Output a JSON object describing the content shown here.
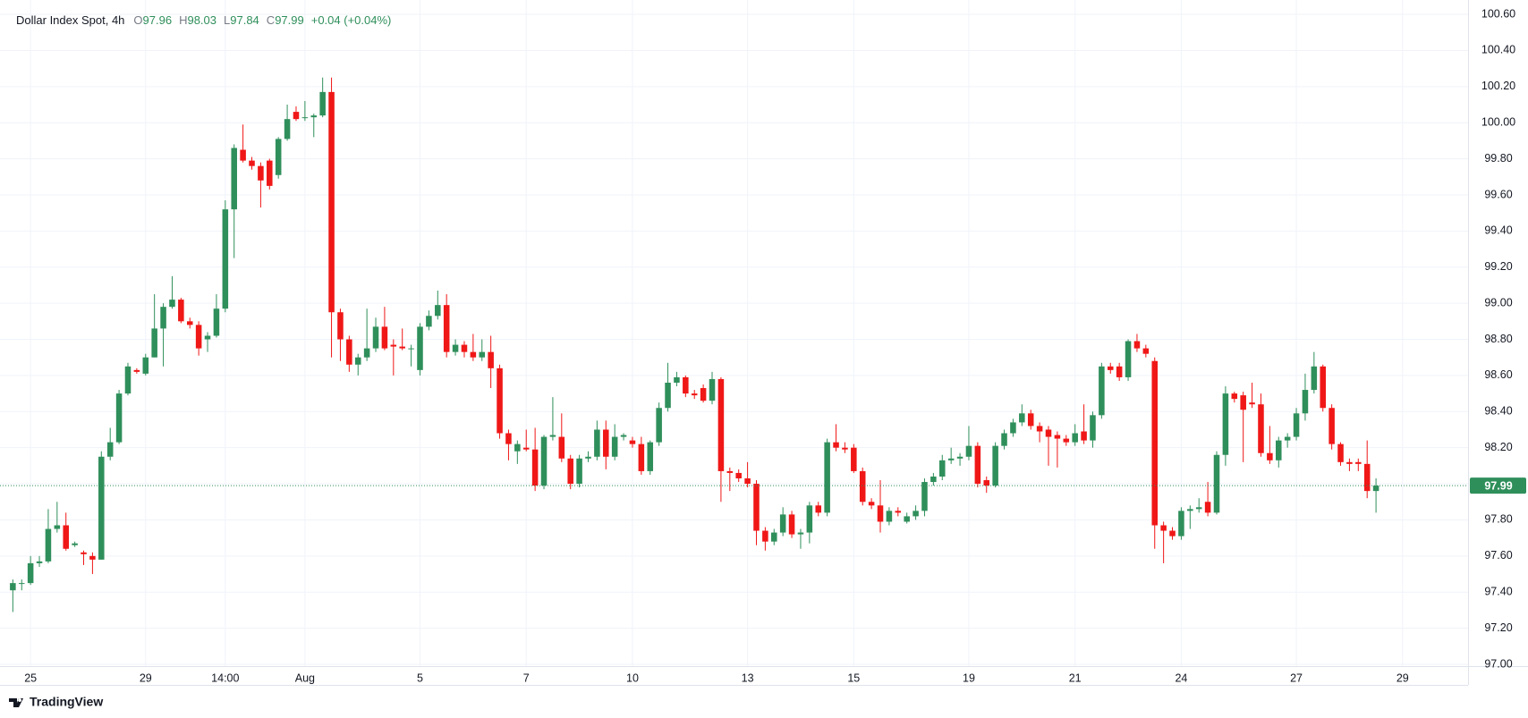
{
  "chart_data": {
    "type": "candlestick",
    "title": "Dollar Index Spot, 4h",
    "readout": [
      {
        "label": "O",
        "value": 97.96
      },
      {
        "label": "H",
        "value": 98.03
      },
      {
        "label": "L",
        "value": 97.84
      },
      {
        "label": "C",
        "value": 97.99
      }
    ],
    "change": "+0.04 (+0.04%)",
    "branding": "TradingView",
    "up_color": "#2f8f5b",
    "down_color": "#f01717",
    "last_price": 97.99,
    "grid": true,
    "open": [
      97.41,
      97.45,
      97.45,
      97.56,
      97.57,
      97.75,
      97.77,
      97.66,
      97.62,
      97.6,
      97.58,
      98.15,
      98.23,
      98.5,
      98.63,
      98.61,
      98.7,
      98.86,
      98.98,
      99.02,
      98.9,
      98.88,
      98.8,
      98.82,
      98.97,
      99.52,
      99.85,
      99.79,
      99.76,
      99.79,
      99.71,
      99.91,
      100.06,
      100.03,
      100.03,
      100.04,
      100.17,
      98.95,
      98.8,
      98.66,
      98.7,
      98.75,
      98.87,
      98.77,
      98.76,
      98.75,
      98.63,
      98.87,
      98.93,
      98.99,
      98.73,
      98.77,
      98.73,
      98.7,
      98.73,
      98.64,
      98.28,
      98.18,
      98.2,
      98.19,
      97.99,
      98.26,
      98.26,
      98.14,
      98.0,
      98.14,
      98.15,
      98.3,
      98.15,
      98.26,
      98.24,
      98.22,
      98.07,
      98.23,
      98.42,
      98.56,
      98.59,
      98.5,
      98.53,
      98.46,
      98.58,
      98.07,
      98.06,
      98.03,
      98.0,
      97.74,
      97.68,
      97.73,
      97.83,
      97.72,
      97.73,
      97.88,
      97.84,
      98.23,
      98.2,
      98.2,
      98.07,
      97.9,
      97.88,
      97.79,
      97.85,
      97.79,
      97.82,
      97.85,
      98.01,
      98.04,
      98.13,
      98.14,
      98.15,
      98.21,
      98.02,
      97.99,
      98.21,
      98.28,
      98.34,
      98.39,
      98.32,
      98.3,
      98.27,
      98.25,
      98.23,
      98.29,
      98.24,
      98.38,
      98.65,
      98.65,
      98.59,
      98.79,
      98.75,
      98.68,
      97.77,
      97.74,
      97.71,
      97.85,
      97.86,
      97.9,
      97.84,
      98.16,
      98.5,
      98.49,
      98.45,
      98.44,
      98.17,
      98.13,
      98.24,
      98.26,
      98.39,
      98.52,
      98.65,
      98.42,
      98.22,
      98.12,
      98.12,
      98.11,
      97.96
    ],
    "high": [
      97.47,
      97.47,
      97.6,
      97.6,
      97.86,
      97.9,
      97.84,
      97.68,
      97.63,
      97.62,
      98.18,
      98.31,
      98.52,
      98.67,
      98.64,
      98.72,
      99.05,
      99.0,
      99.15,
      99.03,
      98.92,
      98.9,
      98.84,
      99.05,
      99.57,
      99.88,
      99.99,
      99.81,
      99.78,
      99.8,
      99.92,
      100.1,
      100.09,
      100.12,
      100.05,
      100.25,
      100.25,
      98.97,
      98.82,
      98.72,
      98.97,
      98.92,
      98.98,
      98.8,
      98.86,
      98.77,
      98.89,
      98.96,
      99.07,
      99.05,
      98.8,
      98.79,
      98.83,
      98.8,
      98.82,
      98.66,
      98.3,
      98.24,
      98.3,
      98.31,
      98.27,
      98.48,
      98.39,
      98.16,
      98.16,
      98.18,
      98.35,
      98.35,
      98.33,
      98.28,
      98.26,
      98.26,
      98.24,
      98.45,
      98.67,
      98.62,
      98.6,
      98.52,
      98.55,
      98.62,
      98.59,
      98.09,
      98.08,
      98.12,
      98.02,
      97.76,
      97.75,
      97.87,
      97.85,
      97.75,
      97.9,
      97.9,
      98.25,
      98.33,
      98.23,
      98.22,
      98.09,
      97.92,
      98.02,
      97.87,
      97.87,
      97.84,
      97.88,
      98.03,
      98.06,
      98.16,
      98.2,
      98.17,
      98.32,
      98.23,
      98.04,
      98.23,
      98.3,
      98.36,
      98.44,
      98.41,
      98.34,
      98.32,
      98.29,
      98.27,
      98.33,
      98.44,
      98.4,
      98.67,
      98.67,
      98.67,
      98.8,
      98.83,
      98.77,
      98.7,
      97.79,
      97.76,
      97.87,
      97.88,
      97.92,
      98.01,
      98.18,
      98.54,
      98.51,
      98.51,
      98.56,
      98.5,
      98.32,
      98.26,
      98.28,
      98.42,
      98.61,
      98.73,
      98.66,
      98.44,
      98.23,
      98.14,
      98.14,
      98.24,
      98.03
    ],
    "low": [
      97.29,
      97.41,
      97.44,
      97.54,
      97.56,
      97.73,
      97.63,
      97.65,
      97.55,
      97.5,
      97.58,
      98.13,
      98.22,
      98.49,
      98.61,
      98.6,
      98.7,
      98.65,
      98.97,
      98.89,
      98.86,
      98.71,
      98.73,
      98.81,
      98.95,
      99.25,
      99.78,
      99.74,
      99.53,
      99.63,
      99.69,
      99.9,
      100.01,
      100.01,
      99.92,
      100.03,
      98.7,
      98.68,
      98.62,
      98.6,
      98.68,
      98.73,
      98.74,
      98.6,
      98.74,
      98.65,
      98.6,
      98.85,
      98.91,
      98.7,
      98.71,
      98.7,
      98.68,
      98.68,
      98.53,
      98.25,
      98.13,
      98.11,
      98.18,
      97.96,
      97.97,
      98.24,
      98.12,
      97.97,
      97.98,
      98.12,
      98.13,
      98.08,
      98.13,
      98.24,
      98.2,
      98.05,
      98.05,
      98.21,
      98.4,
      98.54,
      98.48,
      98.47,
      98.45,
      98.44,
      97.9,
      97.96,
      98.01,
      97.98,
      97.66,
      97.63,
      97.66,
      97.71,
      97.7,
      97.64,
      97.67,
      97.82,
      97.82,
      98.18,
      98.17,
      98.06,
      97.88,
      97.86,
      97.73,
      97.77,
      97.82,
      97.78,
      97.8,
      97.82,
      97.99,
      98.02,
      98.11,
      98.1,
      98.13,
      97.98,
      97.95,
      97.98,
      98.19,
      98.26,
      98.32,
      98.3,
      98.23,
      98.1,
      98.09,
      98.21,
      98.21,
      98.22,
      98.2,
      98.36,
      98.61,
      98.57,
      98.57,
      98.73,
      98.7,
      97.64,
      97.56,
      97.69,
      97.69,
      97.75,
      97.84,
      97.82,
      97.83,
      98.1,
      98.45,
      98.12,
      98.42,
      98.15,
      98.11,
      98.09,
      98.2,
      98.24,
      98.35,
      98.5,
      98.4,
      98.19,
      98.1,
      98.07,
      98.07,
      97.92,
      97.84
    ],
    "close": [
      97.45,
      97.45,
      97.56,
      97.57,
      97.75,
      97.77,
      97.64,
      97.67,
      97.61,
      97.58,
      98.15,
      98.23,
      98.5,
      98.65,
      98.62,
      98.7,
      98.86,
      98.98,
      99.02,
      98.9,
      98.88,
      98.75,
      98.82,
      98.97,
      99.52,
      99.86,
      99.79,
      99.76,
      99.68,
      99.65,
      99.91,
      100.02,
      100.02,
      100.03,
      100.04,
      100.17,
      98.95,
      98.8,
      98.66,
      98.7,
      98.75,
      98.87,
      98.75,
      98.76,
      98.75,
      98.75,
      98.87,
      98.93,
      98.99,
      98.73,
      98.77,
      98.73,
      98.7,
      98.73,
      98.64,
      98.28,
      98.22,
      98.22,
      98.19,
      97.99,
      98.26,
      98.27,
      98.14,
      98.0,
      98.14,
      98.15,
      98.3,
      98.15,
      98.26,
      98.27,
      98.22,
      98.07,
      98.23,
      98.42,
      98.56,
      98.59,
      98.5,
      98.49,
      98.46,
      98.58,
      98.07,
      98.06,
      98.03,
      98.0,
      97.74,
      97.68,
      97.73,
      97.83,
      97.72,
      97.73,
      97.88,
      97.84,
      98.23,
      98.2,
      98.19,
      98.07,
      97.9,
      97.88,
      97.79,
      97.85,
      97.84,
      97.82,
      97.85,
      98.01,
      98.04,
      98.13,
      98.14,
      98.15,
      98.21,
      98.0,
      97.99,
      98.21,
      98.28,
      98.34,
      98.39,
      98.32,
      98.29,
      98.26,
      98.25,
      98.23,
      98.28,
      98.24,
      98.38,
      98.65,
      98.63,
      98.59,
      98.79,
      98.75,
      98.72,
      97.77,
      97.74,
      97.71,
      97.85,
      97.86,
      97.87,
      97.84,
      98.16,
      98.5,
      98.47,
      98.41,
      98.44,
      98.17,
      98.13,
      98.24,
      98.26,
      98.39,
      98.52,
      98.65,
      98.42,
      98.22,
      98.12,
      98.11,
      98.11,
      97.96,
      97.99
    ],
    "xlim": [
      -0.44,
      164.4
    ],
    "xticks": [
      {
        "value": 2,
        "label": "25"
      },
      {
        "value": 15,
        "label": "29"
      },
      {
        "value": 24,
        "label": "14:00"
      },
      {
        "value": 33,
        "label": "Aug"
      },
      {
        "value": 46,
        "label": "5"
      },
      {
        "value": 58,
        "label": "7"
      },
      {
        "value": 70,
        "label": "10"
      },
      {
        "value": 83,
        "label": "13"
      },
      {
        "value": 95,
        "label": "15"
      },
      {
        "value": 108,
        "label": "19"
      },
      {
        "value": 120,
        "label": "21"
      },
      {
        "value": 132,
        "label": "24"
      },
      {
        "value": 145,
        "label": "27"
      },
      {
        "value": 157,
        "label": "29"
      }
    ],
    "ylim": [
      96.99,
      100.63
    ],
    "yticks": [
      {
        "value": 97.0,
        "label": "97.00"
      },
      {
        "value": 97.2,
        "label": "97.20"
      },
      {
        "value": 97.4,
        "label": "97.40"
      },
      {
        "value": 97.6,
        "label": "97.60"
      },
      {
        "value": 97.8,
        "label": "97.80"
      },
      {
        "value": 98.0,
        "label": "98.00"
      },
      {
        "value": 98.2,
        "label": "98.20"
      },
      {
        "value": 98.4,
        "label": "98.40"
      },
      {
        "value": 98.6,
        "label": "98.60"
      },
      {
        "value": 98.8,
        "label": "98.80"
      },
      {
        "value": 99.0,
        "label": "99.00"
      },
      {
        "value": 99.2,
        "label": "99.20"
      },
      {
        "value": 99.4,
        "label": "99.40"
      },
      {
        "value": 99.6,
        "label": "99.60"
      },
      {
        "value": 99.8,
        "label": "99.80"
      },
      {
        "value": 100.0,
        "label": "100.00"
      },
      {
        "value": 100.2,
        "label": "100.20"
      },
      {
        "value": 100.4,
        "label": "100.40"
      },
      {
        "value": 100.6,
        "label": "100.60"
      }
    ]
  }
}
